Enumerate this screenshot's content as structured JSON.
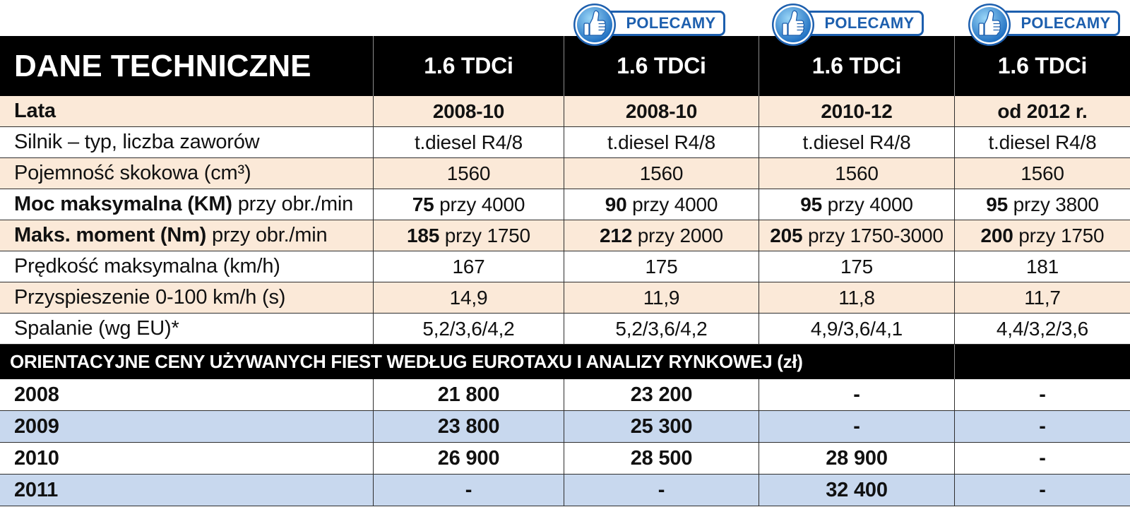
{
  "header": {
    "title": "DANE TECHNICZNE",
    "columns": [
      {
        "model": "1.6 TDCi"
      },
      {
        "model": "1.6 TDCi",
        "badge": "POLECAMY"
      },
      {
        "model": "1.6 TDCi",
        "badge": "POLECAMY"
      },
      {
        "model": "1.6 TDCi",
        "badge": "POLECAMY"
      }
    ]
  },
  "specs": [
    {
      "label": "Lata",
      "values": [
        "2008-10",
        "2008-10",
        "2010-12",
        "od 2012 r."
      ]
    },
    {
      "label": "Silnik – typ, liczba zaworów",
      "values": [
        "t.diesel R4/8",
        "t.diesel R4/8",
        "t.diesel R4/8",
        "t.diesel R4/8"
      ]
    },
    {
      "label": "Pojemność skokowa (cm³)",
      "values": [
        "1560",
        "1560",
        "1560",
        "1560"
      ]
    },
    {
      "label": {
        "bold": "Moc maksymalna (KM)",
        "text": "przy obr./min"
      },
      "values": [
        {
          "bold": "75",
          "text": "przy 4000"
        },
        {
          "bold": "90",
          "text": "przy 4000"
        },
        {
          "bold": "95",
          "text": "przy 4000"
        },
        {
          "bold": "95",
          "text": "przy 3800"
        }
      ]
    },
    {
      "label": {
        "bold": "Maks. moment (Nm)",
        "text": "przy obr./min"
      },
      "values": [
        {
          "bold": "185",
          "text": "przy 1750"
        },
        {
          "bold": "212",
          "text": "przy 2000"
        },
        {
          "bold": "205",
          "text": "przy 1750-3000"
        },
        {
          "bold": "200",
          "text": "przy 1750"
        }
      ]
    },
    {
      "label": "Prędkość maksymalna (km/h)",
      "values": [
        "167",
        "175",
        "175",
        "181"
      ]
    },
    {
      "label": "Przyspieszenie 0-100 km/h (s)",
      "values": [
        "14,9",
        "11,9",
        "11,8",
        "11,7"
      ]
    },
    {
      "label": "Spalanie (wg EU)*",
      "values": [
        "5,2/3,6/4,2",
        "5,2/3,6/4,2",
        "4,9/3,6/4,1",
        "4,4/3,2/3,6"
      ]
    }
  ],
  "prices": {
    "title": "ORIENTACYJNE CENY UŻYWANYCH FIEST WEDŁUG EUROTAXU I ANALIZY RYNKOWEJ (zł)",
    "rows": [
      {
        "year": "2008",
        "values": [
          "21 800",
          "23 200",
          "-",
          "-"
        ]
      },
      {
        "year": "2009",
        "values": [
          "23 800",
          "25 300",
          "-",
          "-"
        ]
      },
      {
        "year": "2010",
        "values": [
          "26 900",
          "28 500",
          "28 900",
          "-"
        ]
      },
      {
        "year": "2011",
        "values": [
          "-",
          "-",
          "32 400",
          "-"
        ]
      }
    ]
  },
  "colors": {
    "header-bg": "#000000",
    "spec-band": "#fbe9d8",
    "price-band": "#c8d8ee",
    "badge-blue": "#1d5fae"
  },
  "icons": {
    "badge": "thumbs-up-icon"
  }
}
